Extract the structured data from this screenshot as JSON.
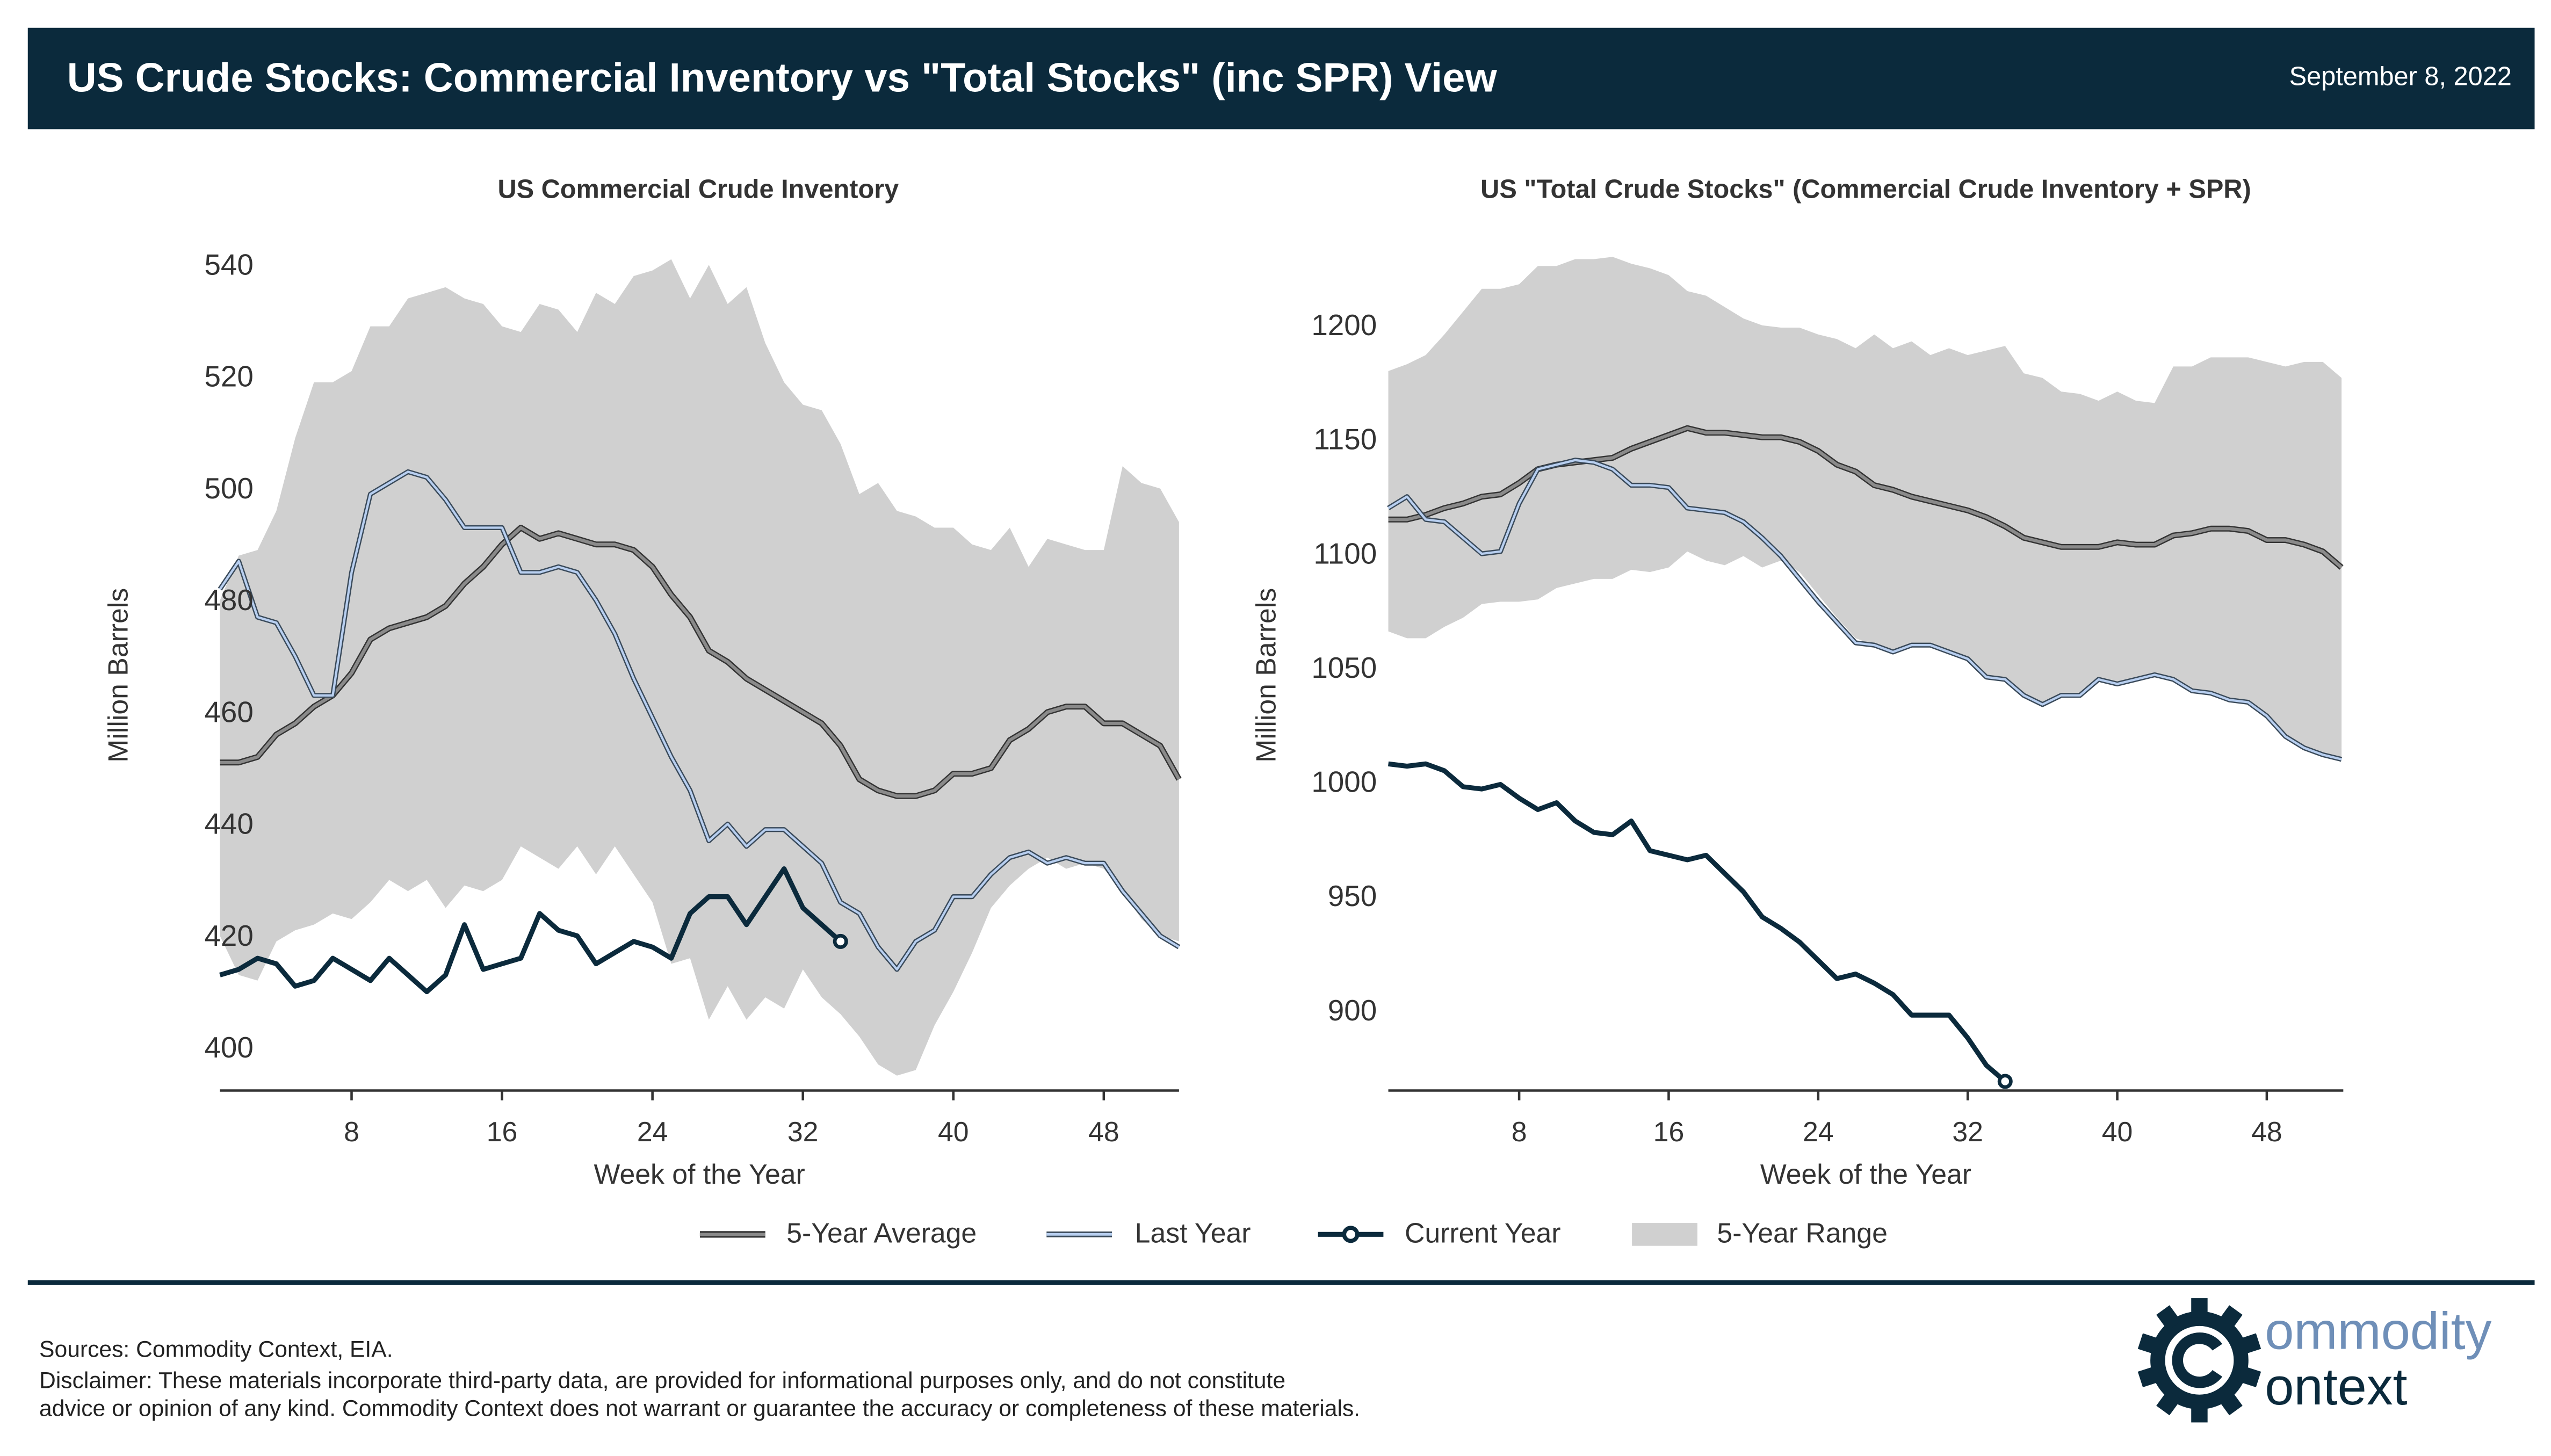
{
  "header": {
    "title": "US Crude Stocks: Commercial Inventory vs \"Total Stocks\" (inc SPR) View",
    "date": "September 8, 2022"
  },
  "legend": {
    "avg": "5-Year Average",
    "last": "Last Year",
    "current": "Current Year",
    "range": "5-Year Range"
  },
  "colors": {
    "header": "#0b2a3c",
    "range": "#d0d0d0",
    "avg": "#8a8a8a",
    "last": "#b8cff0",
    "current": "#0b2a3c"
  },
  "footer": {
    "sources": "Sources: Commodity Context, EIA.",
    "disclaimer1": "Disclaimer: These materials incorporate third-party data, are provided for informational purposes only, and do not constitute",
    "disclaimer2": "advice or opinion of any kind. Commodity Context does not warrant or guarantee the accuracy or completeness of these materials.",
    "logo_line1": "ommodity",
    "logo_line2": "ontext"
  },
  "chart_data": [
    {
      "type": "line",
      "title": "US Commercial Crude Inventory",
      "xlabel": "Week of the Year",
      "ylabel": "Million Barrels",
      "xlim": [
        1,
        52
      ],
      "ylim": [
        393,
        543
      ],
      "xticks": [
        8,
        16,
        24,
        32,
        40,
        48
      ],
      "yticks": [
        400,
        420,
        440,
        460,
        480,
        500,
        520,
        540
      ],
      "grid": false,
      "series": [
        {
          "name": "5-Year Range",
          "lower": [
            420,
            413,
            412,
            419,
            421,
            422,
            424,
            423,
            426,
            430,
            428,
            430,
            425,
            429,
            428,
            430,
            436,
            434,
            432,
            436,
            431,
            436,
            431,
            426,
            415,
            416,
            405,
            411,
            405,
            409,
            407,
            414,
            409,
            406,
            402,
            397,
            395,
            396,
            404,
            410,
            417,
            425,
            429,
            432,
            434,
            432,
            433,
            432,
            428,
            423,
            420,
            419
          ],
          "upper": [
            480,
            488,
            489,
            496,
            509,
            519,
            519,
            521,
            529,
            529,
            534,
            535,
            536,
            534,
            533,
            529,
            528,
            533,
            532,
            528,
            535,
            533,
            538,
            539,
            541,
            534,
            540,
            533,
            536,
            526,
            519,
            515,
            514,
            508,
            499,
            501,
            496,
            495,
            493,
            493,
            490,
            489,
            493,
            486,
            491,
            490,
            489,
            489,
            504,
            501,
            500,
            494
          ]
        },
        {
          "name": "5-Year Average",
          "values": [
            451,
            451,
            452,
            456,
            458,
            461,
            463,
            467,
            473,
            475,
            476,
            477,
            479,
            483,
            486,
            490,
            493,
            491,
            492,
            491,
            490,
            490,
            489,
            486,
            481,
            477,
            471,
            469,
            466,
            464,
            462,
            460,
            458,
            454,
            448,
            446,
            445,
            445,
            446,
            449,
            449,
            450,
            455,
            457,
            460,
            461,
            461,
            458,
            458,
            456,
            454,
            448
          ]
        },
        {
          "name": "Last Year",
          "values": [
            482,
            487,
            477,
            476,
            470,
            463,
            463,
            485,
            499,
            501,
            503,
            502,
            498,
            493,
            493,
            493,
            485,
            485,
            486,
            485,
            480,
            474,
            466,
            459,
            452,
            446,
            437,
            440,
            436,
            439,
            439,
            436,
            433,
            426,
            424,
            418,
            414,
            419,
            421,
            427,
            427,
            431,
            434,
            435,
            433,
            434,
            433,
            433,
            428,
            424,
            420,
            418
          ]
        },
        {
          "name": "Current Year",
          "values": [
            413,
            414,
            416,
            415,
            411,
            412,
            416,
            414,
            412,
            416,
            413,
            410,
            413,
            422,
            414,
            415,
            416,
            424,
            421,
            420,
            415,
            417,
            419,
            418,
            416,
            424,
            427,
            427,
            422,
            427,
            432,
            425,
            422,
            419
          ]
        }
      ]
    },
    {
      "type": "line",
      "title": "US \"Total Crude Stocks\" (Commercial Crude Inventory + SPR)",
      "xlabel": "Week of the Year",
      "ylabel": "Million Barrels",
      "xlim": [
        1,
        52
      ],
      "ylim": [
        866,
        1232
      ],
      "xticks": [
        8,
        16,
        24,
        32,
        40,
        48
      ],
      "yticks": [
        900,
        950,
        1000,
        1050,
        1100,
        1150,
        1200
      ],
      "grid": false,
      "series": [
        {
          "name": "5-Year Range",
          "lower": [
            1066,
            1063,
            1063,
            1068,
            1072,
            1078,
            1079,
            1079,
            1080,
            1085,
            1087,
            1089,
            1089,
            1093,
            1092,
            1094,
            1101,
            1097,
            1095,
            1099,
            1094,
            1097,
            1092,
            1082,
            1072,
            1063,
            1060,
            1057,
            1060,
            1060,
            1057,
            1054,
            1046,
            1045,
            1038,
            1034,
            1038,
            1038,
            1045,
            1043,
            1045,
            1047,
            1045,
            1040,
            1039,
            1036,
            1035,
            1029,
            1020,
            1015,
            1012,
            1010
          ],
          "upper": [
            1180,
            1183,
            1187,
            1196,
            1206,
            1216,
            1216,
            1218,
            1226,
            1226,
            1229,
            1229,
            1230,
            1227,
            1225,
            1222,
            1215,
            1213,
            1208,
            1203,
            1200,
            1199,
            1199,
            1196,
            1194,
            1190,
            1196,
            1190,
            1193,
            1187,
            1190,
            1187,
            1189,
            1191,
            1179,
            1177,
            1171,
            1170,
            1167,
            1171,
            1167,
            1166,
            1182,
            1182,
            1186,
            1186,
            1186,
            1184,
            1182,
            1184,
            1184,
            1177
          ]
        },
        {
          "name": "5-Year Average",
          "values": [
            1115,
            1115,
            1117,
            1120,
            1122,
            1125,
            1126,
            1131,
            1137,
            1139,
            1140,
            1141,
            1142,
            1146,
            1149,
            1152,
            1155,
            1153,
            1153,
            1152,
            1151,
            1151,
            1149,
            1145,
            1139,
            1136,
            1130,
            1128,
            1125,
            1123,
            1121,
            1119,
            1116,
            1112,
            1107,
            1105,
            1103,
            1103,
            1103,
            1105,
            1104,
            1104,
            1108,
            1109,
            1111,
            1111,
            1110,
            1106,
            1106,
            1104,
            1101,
            1094
          ]
        },
        {
          "name": "Last Year",
          "values": [
            1120,
            1125,
            1115,
            1114,
            1107,
            1100,
            1101,
            1122,
            1137,
            1139,
            1141,
            1140,
            1137,
            1130,
            1130,
            1129,
            1120,
            1119,
            1118,
            1114,
            1107,
            1099,
            1089,
            1079,
            1070,
            1061,
            1060,
            1057,
            1060,
            1060,
            1057,
            1054,
            1046,
            1045,
            1038,
            1034,
            1038,
            1038,
            1045,
            1043,
            1045,
            1047,
            1045,
            1040,
            1039,
            1036,
            1035,
            1029,
            1020,
            1015,
            1012,
            1010
          ]
        },
        {
          "name": "Current Year",
          "values": [
            1008,
            1007,
            1008,
            1005,
            998,
            997,
            999,
            993,
            988,
            991,
            983,
            978,
            977,
            983,
            970,
            968,
            966,
            968,
            960,
            952,
            941,
            936,
            930,
            922,
            914,
            916,
            912,
            907,
            898,
            898,
            898,
            888,
            876,
            869
          ]
        }
      ]
    }
  ]
}
